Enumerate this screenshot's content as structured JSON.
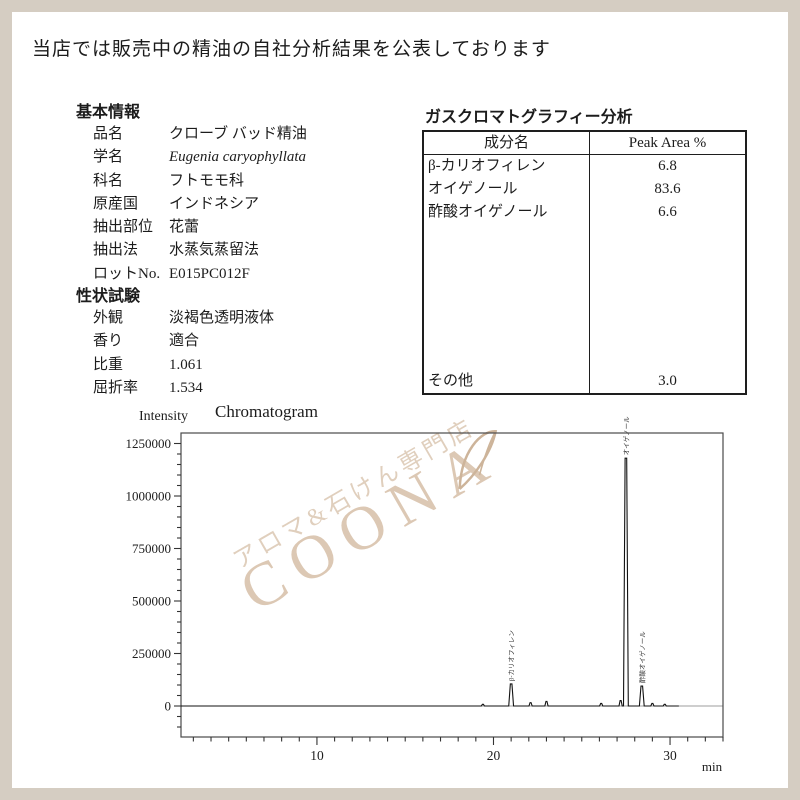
{
  "page": {
    "header": "当店では販売中の精油の自社分析結果を公表しております"
  },
  "basic_info": {
    "heading": "基本情報",
    "rows": [
      {
        "label": "品名",
        "value": "クローブ バッド精油"
      },
      {
        "label": "学名",
        "value": "Eugenia caryophyllata"
      },
      {
        "label": "科名",
        "value": "フトモモ科"
      },
      {
        "label": "原産国",
        "value": "インドネシア"
      },
      {
        "label": "抽出部位",
        "value": "花蕾"
      },
      {
        "label": "抽出法",
        "value": "水蒸気蒸留法"
      },
      {
        "label": "ロットNo.",
        "value": "E015PC012F"
      }
    ]
  },
  "property_test": {
    "heading": "性状試験",
    "rows": [
      {
        "label": "外観",
        "value": "淡褐色透明液体"
      },
      {
        "label": "香り",
        "value": "適合"
      },
      {
        "label": "比重",
        "value": "1.061"
      },
      {
        "label": "屈折率",
        "value": "1.534"
      }
    ]
  },
  "gc_analysis": {
    "heading": "ガスクロマトグラフィー分析",
    "table": {
      "headers": [
        "成分名",
        "Peak Area %"
      ],
      "rows": [
        {
          "component": "β-カリオフィレン",
          "peak_area": "6.8"
        },
        {
          "component": "オイゲノール",
          "peak_area": "83.6"
        },
        {
          "component": "酢酸オイゲノール",
          "peak_area": "6.6"
        }
      ],
      "footer_row": {
        "component": "その他",
        "peak_area": "3.0"
      }
    }
  },
  "watermark": {
    "shop_text": "アロマ&石けん専門店",
    "brand": "COONA",
    "color": "#dcc8b4"
  },
  "chart_data": {
    "type": "line",
    "title": "Chromatogram",
    "ylabel": "Intensity",
    "xlabel": "min",
    "xlim": [
      2.3,
      33
    ],
    "ylim": [
      -150000,
      1300000
    ],
    "x_major_ticks": [
      10,
      20,
      30
    ],
    "x_minor_tick_step": 1,
    "y_major_ticks": [
      0,
      250000,
      500000,
      750000,
      1000000,
      1250000
    ],
    "y_major_tick_step": 250000,
    "y_minor_tick_step": 50000,
    "grid": false,
    "legend": false,
    "peaks": [
      {
        "name": "β-カリオフィレン",
        "rt_min": 21.0,
        "intensity": 105000
      },
      {
        "name": "オイゲノール",
        "rt_min": 27.5,
        "intensity": 1180000
      },
      {
        "name": "酢酸オイゲノール",
        "rt_min": 28.4,
        "intensity": 95000
      }
    ],
    "baseline_blips": [
      {
        "rt_min": 19.4,
        "intensity": 8000
      },
      {
        "rt_min": 22.1,
        "intensity": 16000
      },
      {
        "rt_min": 23.0,
        "intensity": 22000
      },
      {
        "rt_min": 26.1,
        "intensity": 12000
      },
      {
        "rt_min": 27.2,
        "intensity": 26000
      },
      {
        "rt_min": 29.0,
        "intensity": 12000
      },
      {
        "rt_min": 29.7,
        "intensity": 8000
      }
    ]
  },
  "colors": {
    "page_border": "#d5cdc2",
    "text": "#1c1c1c",
    "axis": "#4a4a4a",
    "trace": "#111111",
    "watermark": "#dcc8b4"
  }
}
